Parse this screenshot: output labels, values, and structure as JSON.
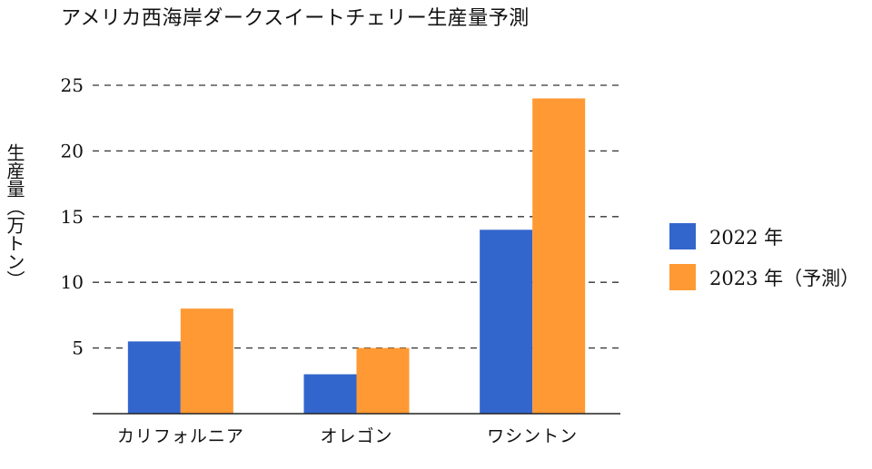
{
  "chart_data": {
    "type": "bar",
    "title": "アメリカ西海岸ダークスイートチェリー生産量予測",
    "ylabel": "生産量（万トン）",
    "xlabel": "",
    "ylim": [
      0,
      25
    ],
    "yticks": [
      5,
      10,
      15,
      20,
      25
    ],
    "grid": true,
    "legend_position": "right",
    "categories": [
      "カリフォルニア",
      "オレゴン",
      "ワシントン"
    ],
    "series": [
      {
        "name": "2022 年",
        "values": [
          5.5,
          3,
          14
        ],
        "color": "#3366cc"
      },
      {
        "name": "2023 年（予測）",
        "values": [
          8,
          5,
          24
        ],
        "color": "#ff9933"
      }
    ]
  }
}
